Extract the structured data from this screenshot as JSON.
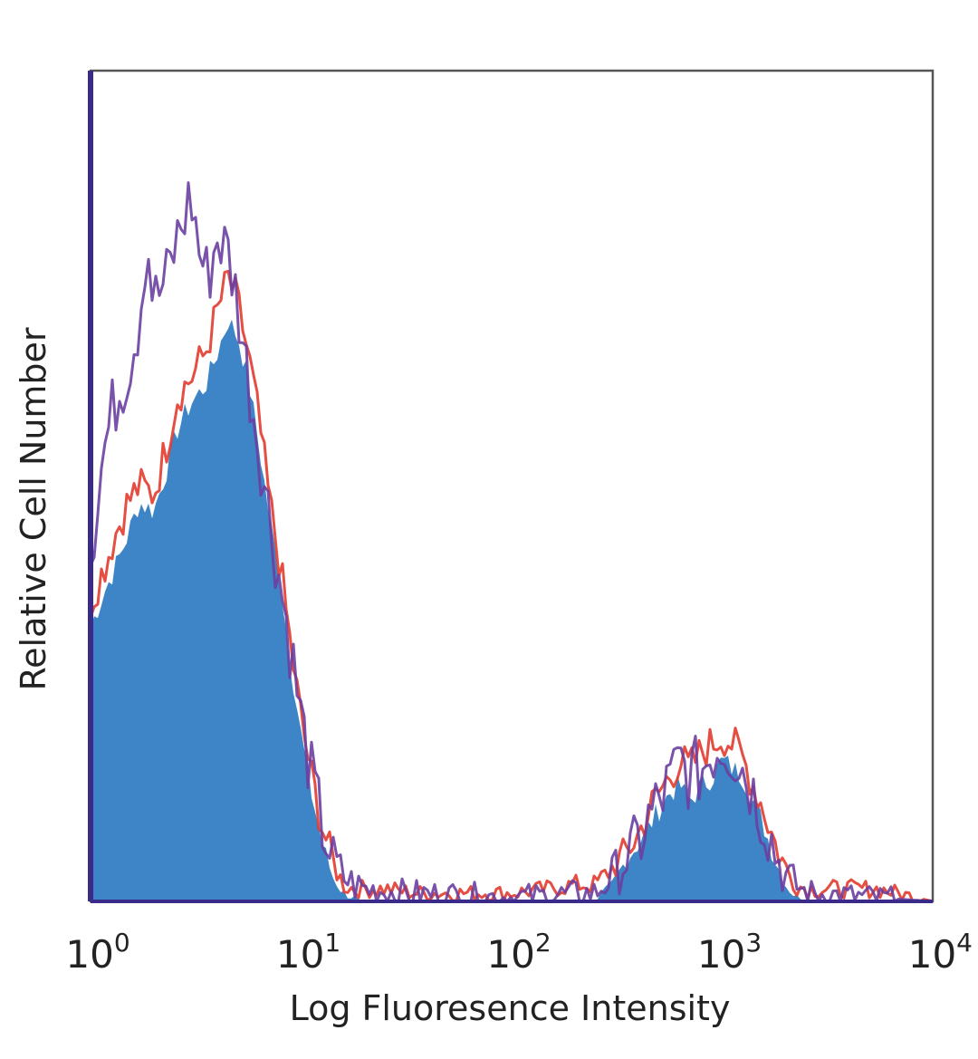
{
  "chart_data": {
    "type": "area",
    "xscale": "log",
    "xlim": [
      1,
      10000
    ],
    "ylim": [
      0,
      100
    ],
    "grid": false,
    "legend": "none",
    "xlabel": "Log Fluoresence Intensity",
    "ylabel": "Relative Cell Number",
    "xticks": [
      {
        "base": "10",
        "exp": "0"
      },
      {
        "base": "10",
        "exp": "1"
      },
      {
        "base": "10",
        "exp": "2"
      },
      {
        "base": "10",
        "exp": "3"
      },
      {
        "base": "10",
        "exp": "4"
      }
    ],
    "colors": {
      "filled": "#3d85c6",
      "red": "#e23b2e",
      "purple": "#6a3fa0",
      "frame_left": "#3a2a8a",
      "frame": "#555555"
    },
    "series": [
      {
        "style": "filled",
        "color": "#3d85c6",
        "x": [
          1.0,
          1.15,
          1.3,
          1.5,
          1.7,
          2.0,
          2.3,
          2.6,
          3.0,
          3.5,
          4.0,
          4.5,
          5.0,
          5.6,
          6.3,
          7.0,
          8.0,
          9.0,
          10.0,
          11.2,
          12.6,
          14.1,
          15.8,
          17.8,
          20.0,
          25.0,
          100.0,
          250.0,
          300.0,
          350.0,
          400.0,
          450.0,
          500.0,
          560.0,
          630.0,
          700.0,
          800.0,
          900.0,
          1000.0,
          1120.0,
          1260.0,
          1410.0,
          1580.0,
          1780.0,
          2000.0,
          2240.0,
          2500.0,
          10000.0
        ],
        "values": [
          33,
          37,
          40,
          44,
          48,
          47,
          52,
          57,
          60,
          62,
          66,
          70,
          68,
          63,
          55,
          47,
          38,
          28,
          20,
          13,
          7,
          3,
          1,
          0.5,
          0,
          0,
          0,
          0,
          2,
          5,
          7,
          9,
          11,
          13,
          14,
          12,
          14,
          15,
          17,
          16,
          15,
          12,
          9,
          5,
          2,
          0.5,
          0,
          0
        ]
      },
      {
        "style": "line",
        "color": "#e23b2e",
        "x": [
          1.0,
          1.15,
          1.3,
          1.5,
          1.7,
          2.0,
          2.3,
          2.6,
          3.0,
          3.5,
          4.0,
          4.5,
          5.0,
          5.6,
          6.3,
          7.0,
          8.0,
          9.0,
          10.0,
          11.2,
          12.6,
          14.1,
          15.8,
          17.8,
          20.0,
          25.0,
          35.0,
          100.0,
          150.0,
          200.0,
          250.0,
          300.0,
          350.0,
          400.0,
          450.0,
          500.0,
          560.0,
          630.0,
          700.0,
          800.0,
          900.0,
          1000.0,
          1120.0,
          1260.0,
          1410.0,
          1580.0,
          1780.0,
          2000.0,
          2240.0,
          2500.0,
          3000.0,
          4000.0,
          5500.0,
          10000.0
        ],
        "values": [
          36,
          40,
          44,
          48,
          50,
          49,
          55,
          61,
          63,
          66,
          71,
          75,
          72,
          66,
          58,
          49,
          40,
          30,
          22,
          15,
          9,
          5,
          2,
          1.5,
          1.5,
          1.5,
          1,
          1,
          1.5,
          2,
          2,
          4,
          6,
          8,
          11,
          13,
          15,
          17,
          16,
          18,
          19,
          20,
          19,
          17,
          14,
          11,
          7,
          4,
          2,
          1.5,
          1.5,
          1.5,
          1.5,
          0
        ]
      },
      {
        "style": "line",
        "color": "#6a3fa0",
        "x": [
          1.0,
          1.15,
          1.3,
          1.5,
          1.7,
          1.85,
          2.0,
          2.3,
          2.6,
          3.0,
          3.3,
          3.6,
          4.0,
          4.5,
          5.0,
          5.6,
          6.3,
          7.0,
          8.0,
          9.0,
          10.0,
          11.2,
          12.6,
          14.1,
          15.8,
          17.8,
          20.0,
          30.0,
          100.0,
          250.0,
          300.0,
          350.0,
          400.0,
          450.0,
          500.0,
          560.0,
          630.0,
          700.0,
          800.0,
          900.0,
          1000.0,
          1120.0,
          1260.0,
          1410.0,
          1580.0,
          1780.0,
          2000.0,
          2500.0,
          10000.0
        ],
        "values": [
          42,
          54,
          60,
          64,
          70,
          80,
          72,
          75,
          80,
          85,
          78,
          75,
          80,
          78,
          72,
          63,
          55,
          47,
          38,
          30,
          22,
          15,
          9,
          5,
          3,
          2,
          1.5,
          1,
          0.5,
          1,
          3,
          5,
          7,
          10,
          12,
          14,
          17,
          15,
          16,
          18,
          19,
          18,
          16,
          13,
          10,
          6,
          3,
          1,
          0
        ]
      }
    ]
  }
}
